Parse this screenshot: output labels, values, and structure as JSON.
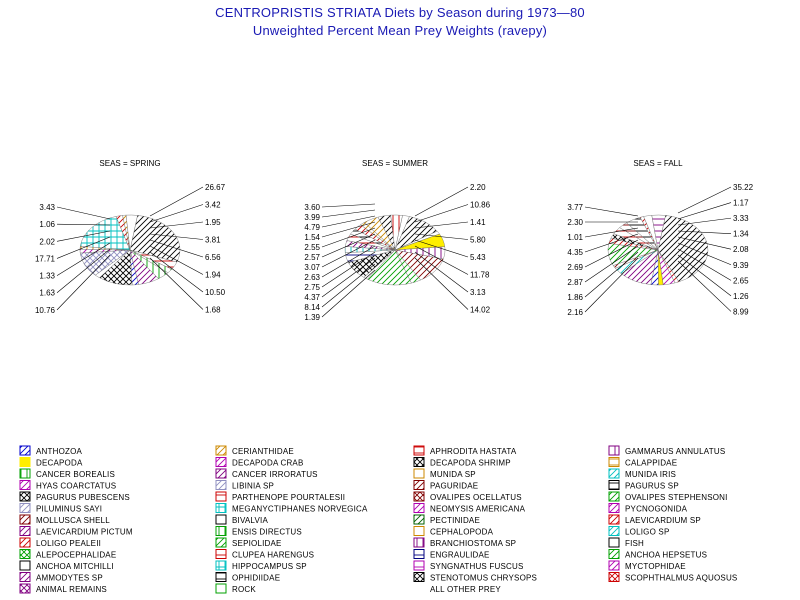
{
  "title": "CENTROPRISTIS STRIATA Diets by Season during 1973—80",
  "subtitle": "Unweighted Percent Mean Prey Weights (ravepy)",
  "chart_data": {
    "type": "pie",
    "charts": [
      {
        "title": "SEAS = SPRING",
        "slices": [
          {
            "value": 26.67,
            "label": "26.67",
            "color": "#000000",
            "pattern": "diag"
          },
          {
            "value": 3.42,
            "label": "3.42",
            "color": "#cc0000",
            "pattern": "hatch"
          },
          {
            "value": 1.95,
            "label": "1.95",
            "color": "#00a000",
            "pattern": "vline"
          },
          {
            "value": 3.81,
            "label": "3.81",
            "color": "#00a000",
            "pattern": "vline"
          },
          {
            "value": 6.56,
            "label": "6.56",
            "color": "#800080",
            "pattern": "diag"
          },
          {
            "value": 1.94,
            "label": "1.94",
            "color": "#0000cc",
            "pattern": "diag"
          },
          {
            "value": 10.5,
            "label": "10.50",
            "color": "#000000",
            "pattern": "cross"
          },
          {
            "value": 1.68,
            "label": "1.68",
            "color": "#000000",
            "pattern": "none"
          },
          {
            "value": 10.76,
            "label": "10.76",
            "color": "#9090c0",
            "pattern": "cross"
          },
          {
            "value": 1.63,
            "label": "1.63",
            "color": "#b000b0",
            "pattern": "diag"
          },
          {
            "value": 1.33,
            "label": "1.33",
            "color": "#cc8800",
            "pattern": "vline"
          },
          {
            "value": 17.71,
            "label": "17.71",
            "color": "#00c0c0",
            "pattern": "grid"
          },
          {
            "value": 2.02,
            "label": "2.02",
            "color": "#cc0000",
            "pattern": "diag"
          },
          {
            "value": 1.06,
            "label": "1.06",
            "color": "#cc8800",
            "pattern": "diag"
          },
          {
            "value": 3.43,
            "label": "3.43",
            "color": "#000000",
            "pattern": "none"
          }
        ],
        "left_labels": [
          "3.43",
          "1.06",
          "2.02",
          "17.71",
          "1.33",
          "1.63",
          "10.76"
        ],
        "right_labels": [
          "26.67",
          "3.42",
          "1.95",
          "3.81",
          "6.56",
          "1.94",
          "10.50",
          "1.68"
        ]
      },
      {
        "title": "SEAS = SUMMER",
        "slices": [
          {
            "value": 2.2,
            "label": "2.20",
            "color": "#000000",
            "pattern": "none"
          },
          {
            "value": 10.86,
            "label": "10.86",
            "color": "#000000",
            "pattern": "diag"
          },
          {
            "value": 1.41,
            "label": "1.41",
            "color": "#000000",
            "pattern": "none"
          },
          {
            "value": 5.8,
            "label": "5.80",
            "color": "#ffee00",
            "pattern": "solid"
          },
          {
            "value": 5.43,
            "label": "5.43",
            "color": "#800080",
            "pattern": "vline"
          },
          {
            "value": 11.78,
            "label": "11.78",
            "color": "#800000",
            "pattern": "diag"
          },
          {
            "value": 3.13,
            "label": "3.13",
            "color": "#00a000",
            "pattern": "diag"
          },
          {
            "value": 14.02,
            "label": "14.02",
            "color": "#00a000",
            "pattern": "diag"
          },
          {
            "value": 1.39,
            "label": "1.39",
            "color": "#000000",
            "pattern": "none"
          },
          {
            "value": 8.14,
            "label": "8.14",
            "color": "#000000",
            "pattern": "cross"
          },
          {
            "value": 4.37,
            "label": "4.37",
            "color": "#000080",
            "pattern": "hatch"
          },
          {
            "value": 2.75,
            "label": "2.75",
            "color": "#00c0c0",
            "pattern": "vline"
          },
          {
            "value": 2.63,
            "label": "2.63",
            "color": "#800080",
            "pattern": "diag"
          },
          {
            "value": 3.07,
            "label": "3.07",
            "color": "#cc0000",
            "pattern": "hatch"
          },
          {
            "value": 2.57,
            "label": "2.57",
            "color": "#000000",
            "pattern": "hatch"
          },
          {
            "value": 2.55,
            "label": "2.55",
            "color": "#cc0000",
            "pattern": "diag"
          },
          {
            "value": 1.54,
            "label": "1.54",
            "color": "#cc8800",
            "pattern": "diag"
          },
          {
            "value": 4.79,
            "label": "4.79",
            "color": "#cc8800",
            "pattern": "diag"
          },
          {
            "value": 3.99,
            "label": "3.99",
            "color": "#000000",
            "pattern": "diag"
          },
          {
            "value": 3.6,
            "label": "3.60",
            "color": "#cc0000",
            "pattern": "vline"
          }
        ],
        "left_labels": [
          "3.60",
          "3.99",
          "4.79",
          "1.54",
          "2.55",
          "2.57",
          "3.07",
          "2.63",
          "2.75",
          "4.37",
          "8.14",
          "1.39"
        ],
        "right_labels": [
          "2.20",
          "10.86",
          "1.41",
          "5.80",
          "5.43",
          "11.78",
          "3.13",
          "14.02"
        ]
      },
      {
        "title": "SEAS = FALL",
        "slices": [
          {
            "value": 35.22,
            "label": "35.22",
            "color": "#000000",
            "pattern": "diag"
          },
          {
            "value": 1.17,
            "label": "1.17",
            "color": "#cc0000",
            "pattern": "diag"
          },
          {
            "value": 3.33,
            "label": "3.33",
            "color": "#b000b0",
            "pattern": "diag"
          },
          {
            "value": 1.34,
            "label": "1.34",
            "color": "#ffee00",
            "pattern": "solid"
          },
          {
            "value": 2.08,
            "label": "2.08",
            "color": "#0000cc",
            "pattern": "diag"
          },
          {
            "value": 9.39,
            "label": "9.39",
            "color": "#800080",
            "pattern": "diag"
          },
          {
            "value": 2.65,
            "label": "2.65",
            "color": "#00c0c0",
            "pattern": "diag"
          },
          {
            "value": 1.26,
            "label": "1.26",
            "color": "#800000",
            "pattern": "diag"
          },
          {
            "value": 8.99,
            "label": "8.99",
            "color": "#00a000",
            "pattern": "diag"
          },
          {
            "value": 2.16,
            "label": "2.16",
            "color": "#cc0000",
            "pattern": "diag"
          },
          {
            "value": 1.86,
            "label": "1.86",
            "color": "#000000",
            "pattern": "cross"
          },
          {
            "value": 2.87,
            "label": "2.87",
            "color": "#cc0000",
            "pattern": "hatch"
          },
          {
            "value": 2.69,
            "label": "2.69",
            "color": "#800000",
            "pattern": "hatch"
          },
          {
            "value": 4.35,
            "label": "4.35",
            "color": "#000000",
            "pattern": "hatch"
          },
          {
            "value": 1.01,
            "label": "1.01",
            "color": "#cc0000",
            "pattern": "diag"
          },
          {
            "value": 2.3,
            "label": "2.30",
            "color": "#000000",
            "pattern": "none"
          },
          {
            "value": 3.77,
            "label": "3.77",
            "color": "#800080",
            "pattern": "hatch"
          }
        ],
        "left_labels": [
          "3.77",
          "2.30",
          "1.01",
          "4.35",
          "2.69",
          "2.87",
          "1.86",
          "2.16"
        ],
        "right_labels": [
          "35.22",
          "1.17",
          "3.33",
          "1.34",
          "2.08",
          "9.39",
          "2.65",
          "1.26",
          "8.99"
        ]
      }
    ]
  },
  "legend": {
    "columns": [
      [
        {
          "label": "ANTHOZOA",
          "color": "#0000cc",
          "pattern": "diag"
        },
        {
          "label": "DECAPODA",
          "color": "#ffee00",
          "pattern": "solid"
        },
        {
          "label": "CANCER BOREALIS",
          "color": "#00a000",
          "pattern": "vline"
        },
        {
          "label": "HYAS COARCTATUS",
          "color": "#b000b0",
          "pattern": "diag"
        },
        {
          "label": "PAGURUS PUBESCENS",
          "color": "#000000",
          "pattern": "cross"
        },
        {
          "label": "PILUMINUS SAYI",
          "color": "#9090c0",
          "pattern": "diag"
        },
        {
          "label": "MOLLUSCA SHELL",
          "color": "#800000",
          "pattern": "diag"
        },
        {
          "label": "LAEVICARDIUM PICTUM",
          "color": "#800080",
          "pattern": "diag"
        },
        {
          "label": "LOLIGO PEALEII",
          "color": "#cc0000",
          "pattern": "diag"
        },
        {
          "label": "ALEPOCEPHALIDAE",
          "color": "#00a000",
          "pattern": "cross"
        },
        {
          "label": "ANCHOA MITCHILLI",
          "color": "#000000",
          "pattern": "none"
        },
        {
          "label": "AMMODYTES SP",
          "color": "#800080",
          "pattern": "diag"
        },
        {
          "label": "ANIMAL REMAINS",
          "color": "#800080",
          "pattern": "cross"
        }
      ],
      [
        {
          "label": "CERIANTHIDAE",
          "color": "#cc8800",
          "pattern": "diag"
        },
        {
          "label": "DECAPODA CRAB",
          "color": "#b000b0",
          "pattern": "diag"
        },
        {
          "label": "CANCER IRRORATUS",
          "color": "#800080",
          "pattern": "diag"
        },
        {
          "label": "LIBINIA SP",
          "color": "#9090c0",
          "pattern": "diag"
        },
        {
          "label": "PARTHENOPE POURTALESII",
          "color": "#cc0000",
          "pattern": "hatch"
        },
        {
          "label": "MEGANYCTIPHANES NORVEGICA",
          "color": "#00c0c0",
          "pattern": "grid"
        },
        {
          "label": "BIVALVIA",
          "color": "#000000",
          "pattern": "none"
        },
        {
          "label": "ENSIS DIRECTUS",
          "color": "#00a000",
          "pattern": "vline"
        },
        {
          "label": "SEPIOLIDAE",
          "color": "#00a000",
          "pattern": "diag"
        },
        {
          "label": "CLUPEA HARENGUS",
          "color": "#cc0000",
          "pattern": "hatch"
        },
        {
          "label": "HIPPOCAMPUS SP",
          "color": "#00c0c0",
          "pattern": "grid"
        },
        {
          "label": "OPHIDIIDAE",
          "color": "#000000",
          "pattern": "hatch"
        },
        {
          "label": "ROCK",
          "color": "#00a000",
          "pattern": "none"
        }
      ],
      [
        {
          "label": "APHRODITA HASTATA",
          "color": "#cc0000",
          "pattern": "hatch"
        },
        {
          "label": "DECAPODA SHRIMP",
          "color": "#000000",
          "pattern": "cross"
        },
        {
          "label": "MUNIDA SP",
          "color": "#cc8800",
          "pattern": "none"
        },
        {
          "label": "PAGURIDAE",
          "color": "#800000",
          "pattern": "diag"
        },
        {
          "label": "OVALIPES OCELLATUS",
          "color": "#800000",
          "pattern": "cross"
        },
        {
          "label": "NEOMYSIS AMERICANA",
          "color": "#b000b0",
          "pattern": "diag"
        },
        {
          "label": "PECTINIDAE",
          "color": "#006000",
          "pattern": "diag"
        },
        {
          "label": "CEPHALOPODA",
          "color": "#cc8800",
          "pattern": "none"
        },
        {
          "label": "BRANCHIOSTOMA SP",
          "color": "#800080",
          "pattern": "vline"
        },
        {
          "label": "ENGRAULIDAE",
          "color": "#000080",
          "pattern": "hatch"
        },
        {
          "label": "SYNGNATHUS FUSCUS",
          "color": "#b000b0",
          "pattern": "hatch"
        },
        {
          "label": "STENOTOMUS CHRYSOPS",
          "color": "#000000",
          "pattern": "cross"
        },
        {
          "label": "ALL OTHER PREY",
          "color": "#ffffff",
          "pattern": "none"
        }
      ],
      [
        {
          "label": "GAMMARUS ANNULATUS",
          "color": "#800080",
          "pattern": "vline"
        },
        {
          "label": "CALAPPIDAE",
          "color": "#cc8800",
          "pattern": "hatch"
        },
        {
          "label": "MUNIDA IRIS",
          "color": "#00c0c0",
          "pattern": "diag"
        },
        {
          "label": "PAGURUS SP",
          "color": "#000000",
          "pattern": "hatch"
        },
        {
          "label": "OVALIPES STEPHENSONI",
          "color": "#00a000",
          "pattern": "diag"
        },
        {
          "label": "PYCNOGONIDA",
          "color": "#b000b0",
          "pattern": "diag"
        },
        {
          "label": "LAEVICARDIUM SP",
          "color": "#cc0000",
          "pattern": "diag"
        },
        {
          "label": "LOLIGO SP",
          "color": "#00c0c0",
          "pattern": "diag"
        },
        {
          "label": "FISH",
          "color": "#000000",
          "pattern": "none"
        },
        {
          "label": "ANCHOA HEPSETUS",
          "color": "#00a000",
          "pattern": "diag"
        },
        {
          "label": "MYCTOPHIDAE",
          "color": "#b000b0",
          "pattern": "diag"
        },
        {
          "label": "SCOPHTHALMUS AQUOSUS",
          "color": "#cc0000",
          "pattern": "cross"
        }
      ]
    ]
  }
}
